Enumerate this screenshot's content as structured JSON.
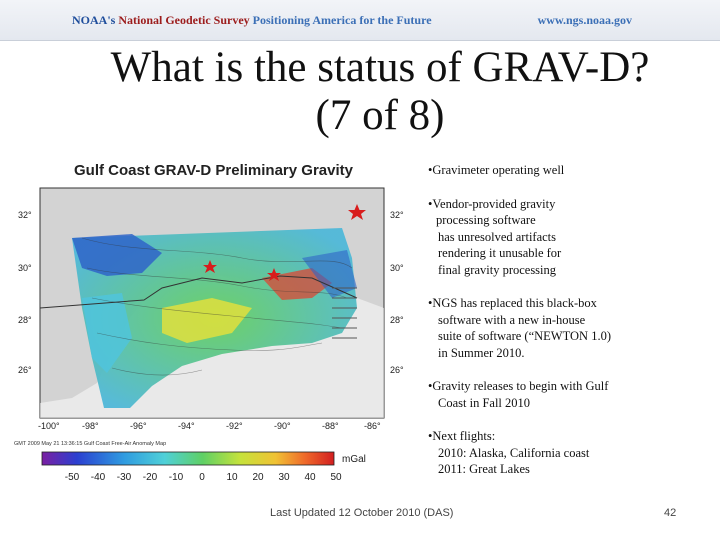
{
  "header": {
    "org_prefix": "NOAA's",
    "org_name": "National Geodetic Survey",
    "tagline": "Positioning America for the Future",
    "website": "www.ngs.noaa.gov"
  },
  "slide": {
    "title_line1": "What is the status of GRAV-D?",
    "title_line2": "(7 of 8)"
  },
  "map": {
    "title": "Gulf Coast GRAV-D Preliminary Gravity",
    "lat_labels_left": [
      "32°",
      "30°",
      "28°",
      "26°"
    ],
    "lat_labels_right": [
      "32°",
      "30°",
      "28°",
      "26°"
    ],
    "lon_labels": [
      "-100°",
      "-98°",
      "-96°",
      "-94°",
      "-92°",
      "-90°",
      "-88°",
      "-86°"
    ],
    "credit": "GMT 2009 May 21 13:36:15   Gulf Coast Free-Air Anomaly Map",
    "colorbar_unit": "mGal",
    "colorbar_ticks": [
      "-50",
      "-40",
      "-30",
      "-20",
      "-10",
      "0",
      "10",
      "20",
      "30",
      "40",
      "50"
    ],
    "colors": {
      "land": "#d3d3d3",
      "blue": "#2f64c8",
      "cyan": "#4fc4de",
      "green": "#56c257",
      "yellow": "#e9e13a",
      "red": "#e43e2c",
      "star": "#d81c1c"
    }
  },
  "bullets": [
    {
      "lines": [
        "•Gravimeter operating well"
      ]
    },
    {
      "lines": [
        "•Vendor-provided gravity",
        "processing software",
        "has unresolved artifacts",
        "rendering it unusable for",
        "final gravity processing"
      ]
    },
    {
      "lines": [
        "•NGS has replaced this black-box",
        "software with a new in-house",
        "suite of software (“NEWTON 1.0)",
        "in Summer 2010."
      ]
    },
    {
      "lines": [
        "•Gravity releases to begin with Gulf",
        "Coast in Fall 2010"
      ]
    },
    {
      "lines": [
        "•Next flights:",
        "2010:  Alaska, California coast",
        "2011:  Great Lakes"
      ]
    }
  ],
  "footer": {
    "updated": "Last Updated 12 October 2010 (DAS)",
    "page_number": "42"
  }
}
